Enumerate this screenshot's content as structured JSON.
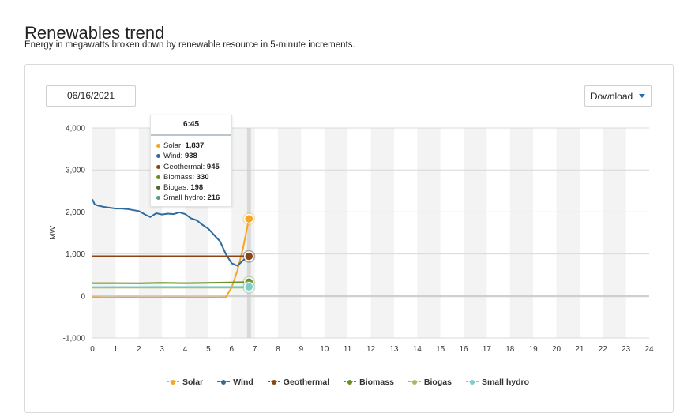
{
  "page": {
    "title": "Renewables trend",
    "subtitle": "Energy in megawatts broken down by renewable resource in 5-minute increments."
  },
  "controls": {
    "date_value": "06/16/2021",
    "download_label": "Download"
  },
  "tooltip": {
    "time": "6:45",
    "rows": [
      {
        "label": "Solar",
        "value": "1,837",
        "color": "#f5a623"
      },
      {
        "label": "Wind",
        "value": "938",
        "color": "#2e6b9e"
      },
      {
        "label": "Geothermal",
        "value": "945",
        "color": "#8b4513"
      },
      {
        "label": "Biomass",
        "value": "330",
        "color": "#6b8e23"
      },
      {
        "label": "Biogas",
        "value": "198",
        "color": "#4a6b2a"
      },
      {
        "label": "Small hydro",
        "value": "216",
        "color": "#5b9a8b"
      }
    ]
  },
  "chart_data": {
    "type": "line",
    "title": "",
    "xlabel": "",
    "ylabel": "MW",
    "xlim": [
      0,
      24
    ],
    "ylim": [
      -1000,
      4000
    ],
    "x_ticks": [
      "0",
      "1",
      "2",
      "3",
      "4",
      "5",
      "6",
      "7",
      "8",
      "9",
      "10",
      "11",
      "12",
      "13",
      "14",
      "15",
      "16",
      "17",
      "18",
      "19",
      "20",
      "21",
      "22",
      "23",
      "24"
    ],
    "y_ticks": [
      "-1,000",
      "0",
      "1,000",
      "2,000",
      "3,000",
      "4,000"
    ],
    "y_tick_values": [
      -1000,
      0,
      1000,
      2000,
      3000,
      4000
    ],
    "grid": true,
    "alternating_hour_bands": true,
    "hover_x": 6.75,
    "legend_position": "bottom",
    "series": [
      {
        "name": "Solar",
        "color": "#f5a623",
        "x": [
          0,
          0.5,
          1,
          2,
          3,
          4,
          5,
          5.5,
          5.75,
          6.0,
          6.25,
          6.5,
          6.75
        ],
        "y": [
          -30,
          -35,
          -35,
          -35,
          -35,
          -35,
          -35,
          -35,
          -30,
          200,
          600,
          1150,
          1837
        ]
      },
      {
        "name": "Wind",
        "color": "#2e6b9e",
        "x": [
          0,
          0.1,
          0.25,
          0.5,
          1,
          1.25,
          1.5,
          2,
          2.3,
          2.5,
          2.75,
          3,
          3.25,
          3.5,
          3.75,
          4,
          4.25,
          4.5,
          4.75,
          5,
          5.25,
          5.5,
          5.75,
          6,
          6.25,
          6.5,
          6.75
        ],
        "y": [
          2300,
          2180,
          2150,
          2120,
          2080,
          2080,
          2070,
          2020,
          1930,
          1880,
          1970,
          1940,
          1960,
          1950,
          1990,
          1950,
          1850,
          1800,
          1690,
          1600,
          1450,
          1300,
          1000,
          780,
          720,
          850,
          938
        ]
      },
      {
        "name": "Geothermal",
        "color": "#8b4513",
        "x": [
          0,
          1,
          2,
          3,
          4,
          5,
          6,
          6.75
        ],
        "y": [
          945,
          945,
          945,
          945,
          945,
          945,
          945,
          945
        ]
      },
      {
        "name": "Biomass",
        "color": "#6b8e23",
        "x": [
          0,
          1,
          2,
          3,
          4,
          5,
          6,
          6.75
        ],
        "y": [
          305,
          305,
          300,
          310,
          305,
          310,
          320,
          330
        ]
      },
      {
        "name": "Biogas",
        "color": "#a8b86b",
        "x": [
          0,
          1,
          2,
          3,
          4,
          5,
          6,
          6.75
        ],
        "y": [
          198,
          198,
          198,
          198,
          198,
          198,
          198,
          198
        ]
      },
      {
        "name": "Small hydro",
        "color": "#7ccfc9",
        "x": [
          0,
          1,
          2,
          3,
          4,
          5,
          6,
          6.75
        ],
        "y": [
          210,
          212,
          212,
          214,
          214,
          214,
          215,
          216
        ]
      }
    ]
  },
  "legend": {
    "items": [
      {
        "label": "Solar",
        "color": "#f5a623"
      },
      {
        "label": "Wind",
        "color": "#2e6b9e"
      },
      {
        "label": "Geothermal",
        "color": "#8b4513"
      },
      {
        "label": "Biomass",
        "color": "#6b8e23"
      },
      {
        "label": "Biogas",
        "color": "#a8b86b"
      },
      {
        "label": "Small hydro",
        "color": "#7ccfc9"
      }
    ]
  }
}
